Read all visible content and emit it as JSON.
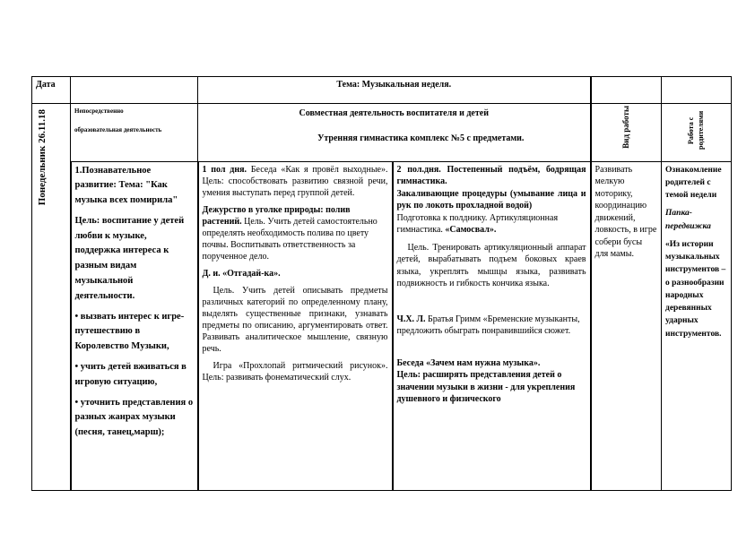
{
  "header": {
    "date_label": "Дата",
    "theme": "Тема: Музыкальная неделя."
  },
  "subheader": {
    "day": "Понедельник 26.11.18",
    "direct_activity": [
      "Непосредственно",
      "образовательная деятельность"
    ],
    "joint_activity": "Совместная деятельность воспитателя и детей",
    "morning_exercise": "Утренняя гимнастика комплекс №5 с предметами.",
    "work_type": "Вид работы",
    "parents_work": "Работа с родителями"
  },
  "col_education": {
    "title": "1.Познавательное развитие: Тема: \"Как музыка всех помирила\"",
    "goal": "Цель: воспитание у детей любви к музыке, поддержка интереса к разным видам музыкальной деятельности.",
    "tasks": [
      "• вызвать интерес к игре-путешествию в Королевство Музыки,",
      "• учить детей вживаться в игровую ситуацию,",
      "• уточнить представления о разных жанрах музыки (песня, танец,марш);"
    ]
  },
  "col_first_half": {
    "conversation_lead": "1 пол дня.",
    "conversation": " Беседа «Как я провёл выходные». Цель: способствовать развитию связной речи, умения выступать перед группой детей.",
    "duty_title": "Дежурство в уголке природы: полив растений.",
    "duty": " Цель. Учить детей самостоятельно определять необходимость полива по цвету почвы. Воспитывать ответственность за порученное дело.",
    "game_title": "Д. и. «Отгадай-ка».",
    "game": "Цель. Учить детей описывать предметы различных категорий по определенному плану, выделять существенные признаки, узнавать предметы по описанию, аргументировать ответ. Развивать аналитическое мышление, связную речь.",
    "rhythm": "Игра «Прохлопай ритмический рисунок». Цель: развивать фонематический слух."
  },
  "col_second_half": {
    "wake_up": "2 пол.дня. Постепенный подъём, бодрящая гимнастика.",
    "hardening": "Закаливающие процедуры (умывание лица и рук по локоть прохладной водой)",
    "prep": "Подготовка к полднику. Артикуляционная гимнастика.",
    "prep_bold": " «Самосвал».",
    "articulation": "Цель. Тренировать артикуляционный аппарат детей, вырабатывать подъем боковых краев языка, укреплять мышцы языка, развивать подвижность и гибкость кончика языка.",
    "reading_lead": "Ч.Х. Л.",
    "reading": " Братья Гримм «Бременские музыканты, предложить обыграть понравившийся сюжет.",
    "talk_title": "Беседа «Зачем нам нужна музыка».",
    "talk": "Цель: расширять представления детей о значении музыки в жизни - для укрепления душевного и физического"
  },
  "col_work_type": {
    "text": "Развивать мелкую моторику, координацию движений, ловкость, в игре собери бусы для мамы."
  },
  "col_parents": {
    "intro": "Ознакомление родителей с темой недели",
    "folder": "Папка-передвижка",
    "folder_title": "«Из истории музыкальных инструментов –о разнообразии народных деревянных ударных инструментов."
  }
}
